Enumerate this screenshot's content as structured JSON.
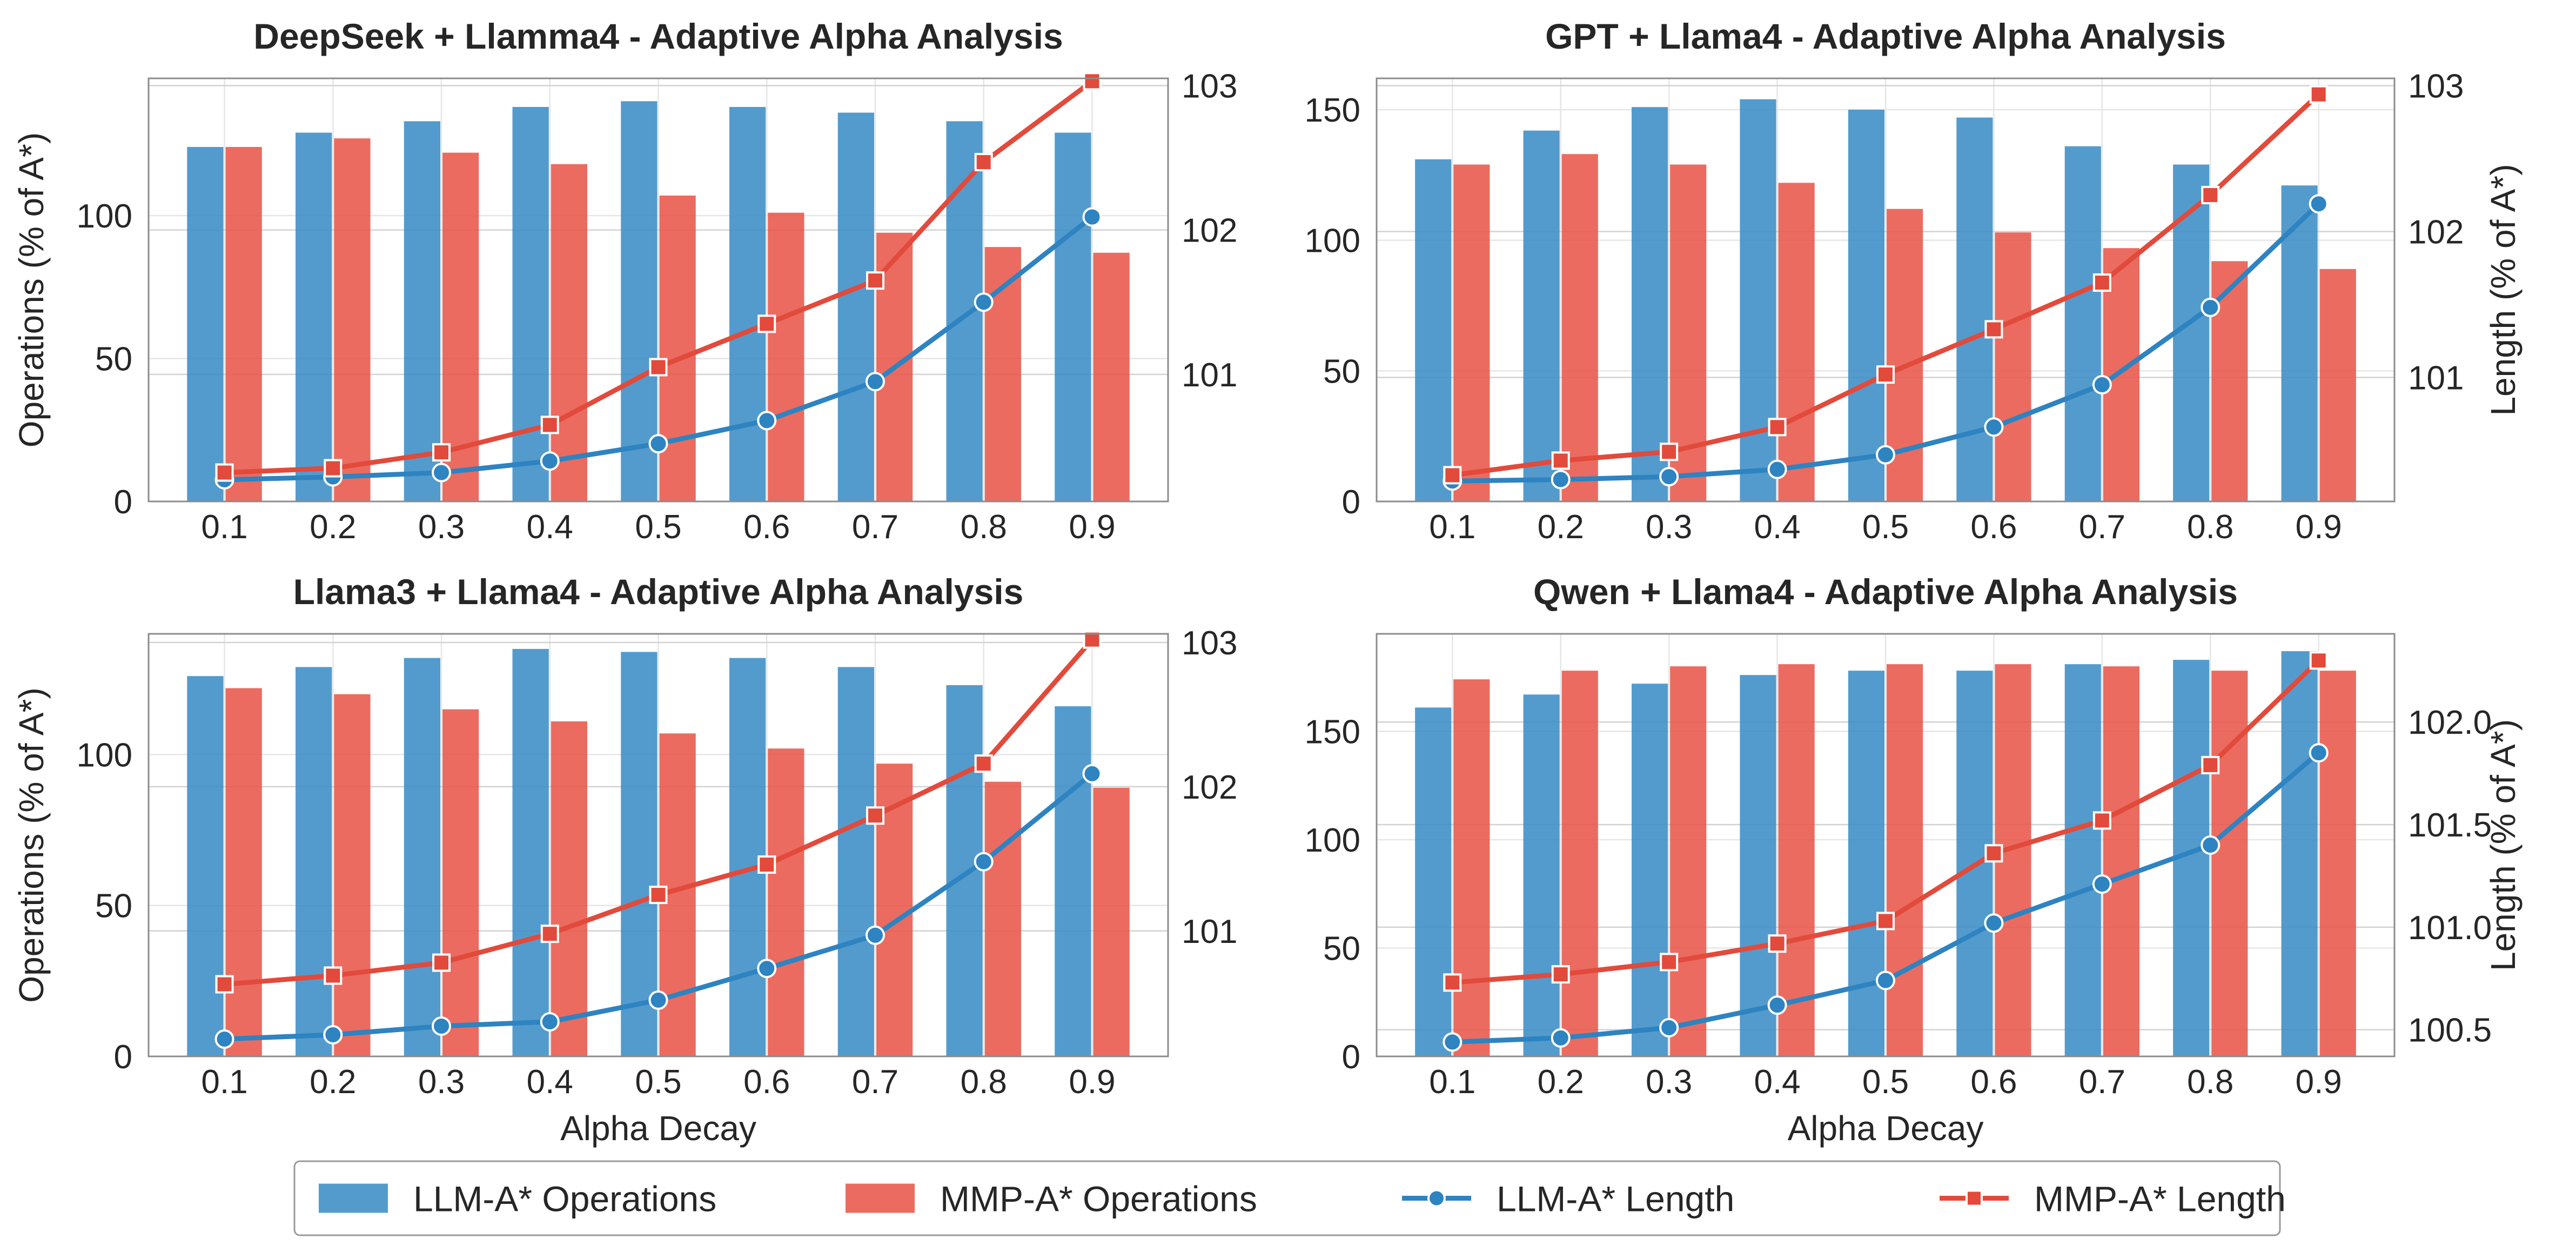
{
  "colors": {
    "llm": "#3b8dc6",
    "mmp": "#e8564a",
    "llm_line": "#2e83c1",
    "mmp_line": "#e24a3b",
    "grid": "#e6e6e6",
    "axis": "#8c8c8c"
  },
  "legend": {
    "items": [
      {
        "label": "LLM-A* Operations",
        "kind": "bar",
        "series": "llm"
      },
      {
        "label": "MMP-A* Operations",
        "kind": "bar",
        "series": "mmp"
      },
      {
        "label": "LLM-A* Length",
        "kind": "line-circle",
        "series": "llm"
      },
      {
        "label": "MMP-A* Length",
        "kind": "line-square",
        "series": "mmp"
      }
    ]
  },
  "chart_data": [
    {
      "type": "bar+line",
      "title": "DeepSeek + Llamma4 - Adaptive Alpha Analysis",
      "xlabel": "",
      "ylabel": "Operations (% of A*)",
      "ylabel_right": "",
      "categories": [
        "0.1",
        "0.2",
        "0.3",
        "0.4",
        "0.5",
        "0.6",
        "0.7",
        "0.8",
        "0.9"
      ],
      "ylim": [
        0,
        148
      ],
      "yticks": [
        0,
        50,
        100
      ],
      "y2lim": [
        100.12,
        103.05
      ],
      "y2ticks": [
        101,
        102,
        103
      ],
      "bar_series": [
        {
          "name": "LLM-A* Operations",
          "key": "llm",
          "values": [
            124,
            129,
            133,
            138,
            140,
            138,
            136,
            133,
            129
          ]
        },
        {
          "name": "MMP-A* Operations",
          "key": "mmp",
          "values": [
            124,
            127,
            122,
            118,
            107,
            101,
            94,
            89,
            87
          ]
        }
      ],
      "line_series": [
        {
          "name": "LLM-A* Length",
          "key": "llm",
          "values": [
            100.27,
            100.29,
            100.32,
            100.4,
            100.52,
            100.68,
            100.95,
            101.5,
            102.09
          ]
        },
        {
          "name": "MMP-A* Length",
          "key": "mmp",
          "values": [
            100.32,
            100.35,
            100.46,
            100.65,
            101.05,
            101.35,
            101.65,
            102.47,
            103.03
          ]
        }
      ]
    },
    {
      "type": "bar+line",
      "title": "GPT + Llama4 - Adaptive Alpha Analysis",
      "xlabel": "",
      "ylabel": "",
      "ylabel_right": "Length (% of A*)",
      "categories": [
        "0.1",
        "0.2",
        "0.3",
        "0.4",
        "0.5",
        "0.6",
        "0.7",
        "0.8",
        "0.9"
      ],
      "ylim": [
        0,
        162
      ],
      "yticks": [
        0,
        50,
        100,
        150
      ],
      "y2lim": [
        100.15,
        103.05
      ],
      "y2ticks": [
        101,
        102,
        103
      ],
      "bar_series": [
        {
          "name": "LLM-A* Operations",
          "key": "llm",
          "values": [
            131,
            142,
            151,
            154,
            150,
            147,
            136,
            129,
            121
          ]
        },
        {
          "name": "MMP-A* Operations",
          "key": "mmp",
          "values": [
            129,
            133,
            129,
            122,
            112,
            103,
            97,
            92,
            89
          ]
        }
      ],
      "line_series": [
        {
          "name": "LLM-A* Length",
          "key": "llm",
          "values": [
            100.29,
            100.3,
            100.32,
            100.37,
            100.47,
            100.66,
            100.95,
            101.48,
            102.19
          ]
        },
        {
          "name": "MMP-A* Length",
          "key": "mmp",
          "values": [
            100.33,
            100.43,
            100.49,
            100.66,
            101.02,
            101.33,
            101.65,
            102.25,
            102.94
          ]
        }
      ]
    },
    {
      "type": "bar+line",
      "title": "Llama3 + Llama4 - Adaptive Alpha Analysis",
      "xlabel": "Alpha Decay",
      "ylabel": "Operations (% of A*)",
      "ylabel_right": "",
      "categories": [
        "0.1",
        "0.2",
        "0.3",
        "0.4",
        "0.5",
        "0.6",
        "0.7",
        "0.8",
        "0.9"
      ],
      "ylim": [
        0,
        140
      ],
      "yticks": [
        0,
        50,
        100
      ],
      "y2lim": [
        100.13,
        103.06
      ],
      "y2ticks": [
        101,
        102,
        103
      ],
      "bar_series": [
        {
          "name": "LLM-A* Operations",
          "key": "llm",
          "values": [
            126,
            129,
            132,
            135,
            134,
            132,
            129,
            123,
            116
          ]
        },
        {
          "name": "MMP-A* Operations",
          "key": "mmp",
          "values": [
            122,
            120,
            115,
            111,
            107,
            102,
            97,
            91,
            89
          ]
        }
      ],
      "line_series": [
        {
          "name": "LLM-A* Length",
          "key": "llm",
          "values": [
            100.25,
            100.28,
            100.34,
            100.37,
            100.52,
            100.74,
            100.97,
            101.48,
            102.09
          ]
        },
        {
          "name": "MMP-A* Length",
          "key": "mmp",
          "values": [
            100.63,
            100.69,
            100.78,
            100.98,
            101.25,
            101.46,
            101.8,
            102.16,
            103.02
          ]
        }
      ]
    },
    {
      "type": "bar+line",
      "title": "Qwen + Llama4 - Adaptive Alpha Analysis",
      "xlabel": "Alpha Decay",
      "ylabel": "",
      "ylabel_right": "Length (% of A*)",
      "categories": [
        "0.1",
        "0.2",
        "0.3",
        "0.4",
        "0.5",
        "0.6",
        "0.7",
        "0.8",
        "0.9"
      ],
      "ylim": [
        0,
        195
      ],
      "yticks": [
        0,
        50,
        100,
        150
      ],
      "y2lim": [
        100.37,
        102.43
      ],
      "y2ticks": [
        100.5,
        101.0,
        101.5,
        102.0
      ],
      "y2tick_labels": [
        "100.5",
        "101.0",
        "101.5",
        "102.0"
      ],
      "bar_series": [
        {
          "name": "LLM-A* Operations",
          "key": "llm",
          "values": [
            161,
            167,
            172,
            176,
            178,
            178,
            181,
            183,
            187
          ]
        },
        {
          "name": "MMP-A* Operations",
          "key": "mmp",
          "values": [
            174,
            178,
            180,
            181,
            181,
            181,
            180,
            178,
            178
          ]
        }
      ],
      "line_series": [
        {
          "name": "LLM-A* Length",
          "key": "llm",
          "values": [
            100.44,
            100.46,
            100.51,
            100.62,
            100.74,
            101.02,
            101.21,
            101.4,
            101.85
          ]
        },
        {
          "name": "MMP-A* Length",
          "key": "mmp",
          "values": [
            100.73,
            100.77,
            100.83,
            100.92,
            101.03,
            101.36,
            101.52,
            101.79,
            102.3
          ]
        }
      ]
    }
  ]
}
